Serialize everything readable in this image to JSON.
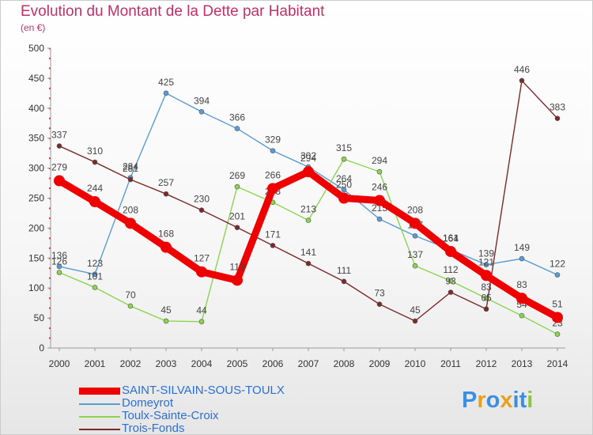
{
  "title": "Evolution du Montant de la Dette par Habitant",
  "unit": "(en €)",
  "logo": {
    "letters": [
      "P",
      "r",
      "o",
      "x",
      "i",
      "t",
      "i"
    ],
    "colors": [
      "#3b8fe0",
      "#e8a020",
      "#3b8fe0",
      "#e8a020",
      "#3b8fe0",
      "#3b8fe0",
      "#8cc63f"
    ]
  },
  "chart_data": {
    "type": "line",
    "title": "Evolution du Montant de la Dette par Habitant",
    "ylabel": "(en €)",
    "xlabel": "",
    "ylim": [
      0,
      500
    ],
    "yticks": [
      0,
      50,
      100,
      150,
      200,
      250,
      300,
      350,
      400,
      450,
      500
    ],
    "grid": false,
    "legend_position": "bottom-left",
    "categories": [
      "2000",
      "2001",
      "2002",
      "2003",
      "2004",
      "2005",
      "2006",
      "2007",
      "2008",
      "2009",
      "2010",
      "2011",
      "2012",
      "2013",
      "2014"
    ],
    "series": [
      {
        "name": "Domeyrot",
        "color": "#5b9bd5",
        "values": [
          136,
          123,
          284,
          425,
          394,
          366,
          329,
          302,
          264,
          215,
          187,
          164,
          139,
          149,
          122
        ]
      },
      {
        "name": "Toulx-Sainte-Croix",
        "color": "#8cd450",
        "values": [
          126,
          101,
          70,
          45,
          44,
          269,
          243,
          213,
          315,
          294,
          137,
          112,
          83,
          54,
          23
        ]
      },
      {
        "name": "Trois-Fonds",
        "color": "#7a2a2a",
        "values": [
          337,
          310,
          281,
          257,
          230,
          201,
          171,
          141,
          111,
          73,
          45,
          93,
          65,
          446,
          383
        ]
      },
      {
        "name": "SAINT-SILVAIN-SOUS-TOULX",
        "color": "#ee0000",
        "values": [
          279,
          244,
          208,
          168,
          127,
          113,
          266,
          294,
          250,
          246,
          208,
          161,
          121,
          83,
          51
        ]
      }
    ]
  }
}
